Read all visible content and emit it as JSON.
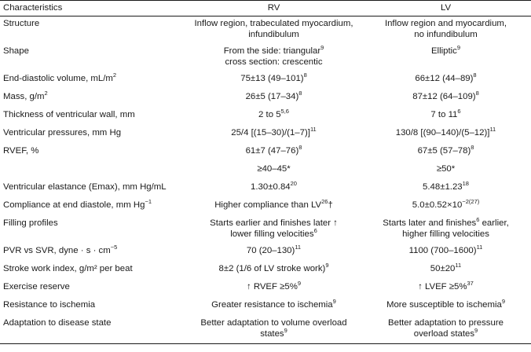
{
  "headers": [
    "Characteristics",
    "RV",
    "LV"
  ],
  "rows": [
    {
      "label": "Structure",
      "label_sup": "",
      "rv": [
        "Inflow region, trabeculated myocardium,",
        "infundibulum"
      ],
      "rv_sup": [
        "",
        ""
      ],
      "lv": [
        "Inflow region and myocardium,",
        "no infundibulum"
      ],
      "lv_sup": [
        "",
        ""
      ]
    },
    {
      "label": "Shape",
      "label_sup": "",
      "rv": [
        "From the side: triangular",
        "cross section: crescentic"
      ],
      "rv_sup": [
        "9",
        ""
      ],
      "lv": [
        "Elliptic"
      ],
      "lv_sup": [
        "9"
      ]
    },
    {
      "label": "End-diastolic volume, mL/m",
      "label_sup": "2",
      "rv": [
        "75±13 (49–101)"
      ],
      "rv_sup": [
        "8"
      ],
      "lv": [
        "66±12 (44–89)"
      ],
      "lv_sup": [
        "8"
      ]
    },
    {
      "label": "Mass, g/m",
      "label_sup": "2",
      "rv": [
        "26±5 (17–34)"
      ],
      "rv_sup": [
        "8"
      ],
      "lv": [
        "87±12 (64–109)"
      ],
      "lv_sup": [
        "8"
      ]
    },
    {
      "label": "Thickness of ventricular wall, mm",
      "label_sup": "",
      "rv": [
        "2 to 5"
      ],
      "rv_sup": [
        "5,6"
      ],
      "lv": [
        "7 to 11"
      ],
      "lv_sup": [
        "6"
      ]
    },
    {
      "label": "Ventricular pressures, mm Hg",
      "label_sup": "",
      "rv": [
        "25/4 [(15–30)/(1–7)]"
      ],
      "rv_sup": [
        "11"
      ],
      "lv": [
        "130/8 [(90–140)/(5–12)]"
      ],
      "lv_sup": [
        "11"
      ]
    },
    {
      "label": "RVEF, %",
      "label_sup": "",
      "rv": [
        "61±7 (47–76)"
      ],
      "rv_sup": [
        "8"
      ],
      "lv": [
        "67±5 (57–78)"
      ],
      "lv_sup": [
        "8"
      ]
    },
    {
      "label": "",
      "label_sup": "",
      "rv": [
        "≥40–45*"
      ],
      "rv_sup": [
        ""
      ],
      "lv": [
        "≥50*"
      ],
      "lv_sup": [
        ""
      ]
    },
    {
      "label": "Ventricular elastance (Emax), mm Hg/mL",
      "label_sup": "",
      "rv": [
        "1.30±0.84"
      ],
      "rv_sup": [
        "20"
      ],
      "lv": [
        "5.48±1.23"
      ],
      "lv_sup": [
        "18"
      ]
    },
    {
      "label": "Compliance at end diastole, mm Hg",
      "label_sup": "−1",
      "rv": [
        "Higher compliance than LV"
      ],
      "rv_sup": [
        "26"
      ],
      "rv_suffix": "†",
      "lv": [
        "5.0±0.52×10"
      ],
      "lv_sup": [
        "−2(27)"
      ]
    },
    {
      "label": "Filling profiles",
      "label_sup": "",
      "rv": [
        "Starts earlier and finishes later ↑",
        "lower filling velocities"
      ],
      "rv_sup": [
        "",
        "6"
      ],
      "lv": [
        "Starts later and finishes earlier,",
        "higher filling velocities"
      ],
      "lv_sup": [
        "",
        ""
      ],
      "lv_inner_sup": "6"
    },
    {
      "label": "PVR vs SVR, dyne · s · cm",
      "label_sup": "−5",
      "rv": [
        "70 (20–130)"
      ],
      "rv_sup": [
        "11"
      ],
      "lv": [
        "1100 (700–1600)"
      ],
      "lv_sup": [
        "11"
      ]
    },
    {
      "label": "Stroke work index, g/m² per beat",
      "label_sup": "",
      "rv": [
        "8±2 (1/6 of LV stroke work)"
      ],
      "rv_sup": [
        "9"
      ],
      "lv": [
        "50±20"
      ],
      "lv_sup": [
        "11"
      ]
    },
    {
      "label": "Exercise reserve",
      "label_sup": "",
      "rv": [
        "↑ RVEF ≥5%"
      ],
      "rv_sup": [
        "9"
      ],
      "lv": [
        "↑ LVEF ≥5%"
      ],
      "lv_sup": [
        "37"
      ]
    },
    {
      "label": "Resistance to ischemia",
      "label_sup": "",
      "rv": [
        "Greater resistance to ischemia"
      ],
      "rv_sup": [
        "9"
      ],
      "lv": [
        "More susceptible to ischemia"
      ],
      "lv_sup": [
        "9"
      ]
    },
    {
      "label": "Adaptation to disease state",
      "label_sup": "",
      "rv": [
        "Better adaptation to volume overload",
        "states"
      ],
      "rv_sup": [
        "",
        "9"
      ],
      "lv": [
        "Better adaptation to pressure",
        "overload states"
      ],
      "lv_sup": [
        "",
        "9"
      ]
    }
  ]
}
